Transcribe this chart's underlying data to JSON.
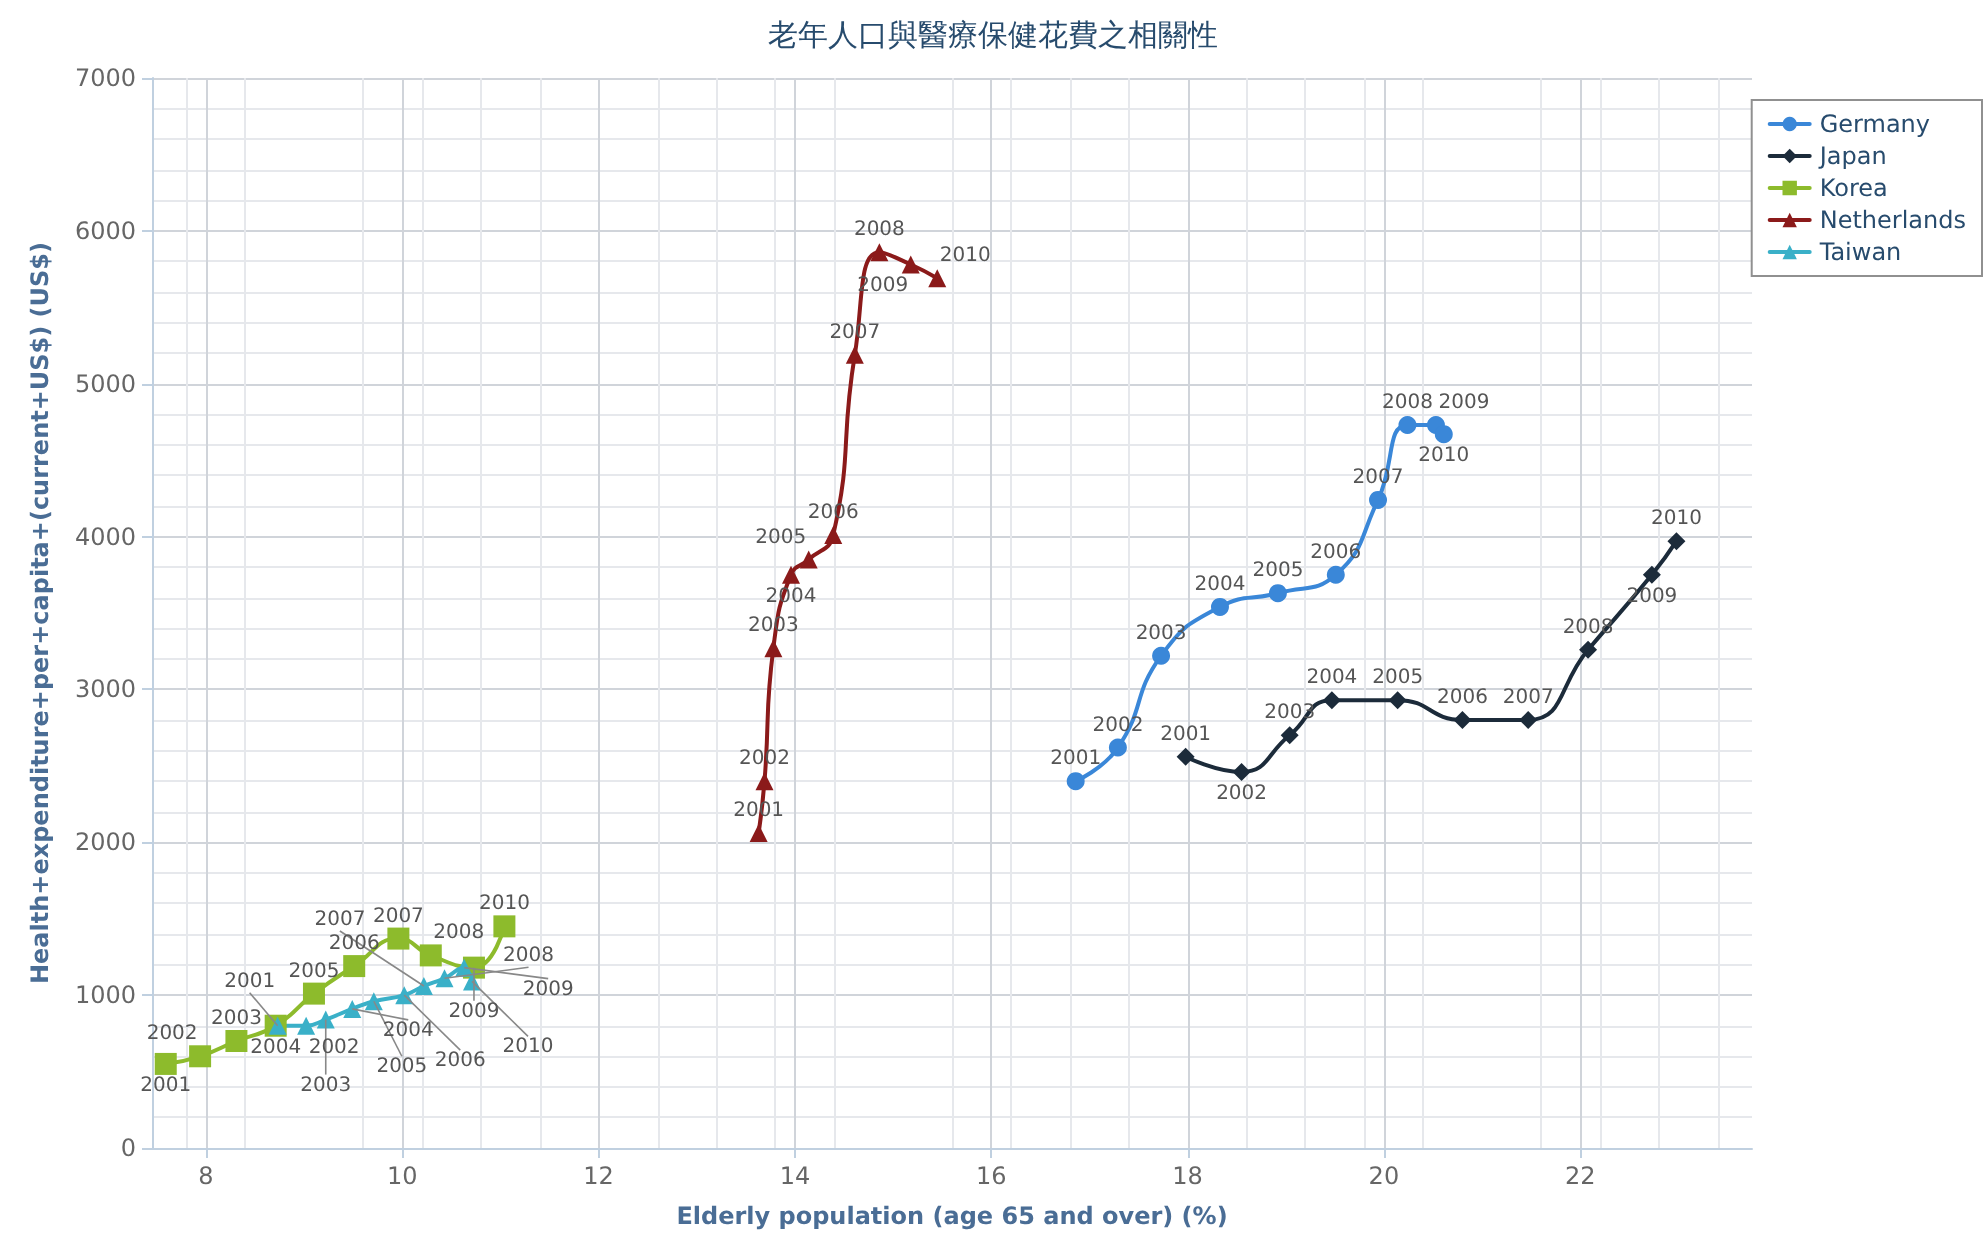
{
  "chart_data": {
    "type": "line",
    "title": "老年人口與醫療保健花費之相關性",
    "xlabel": "Elderly population (age 65 and over) (%)",
    "ylabel": "Health+expenditure+per+capita+(current+US$) (US$)",
    "xlim": [
      7.45,
      23.75
    ],
    "xticks": [
      8,
      10,
      12,
      14,
      16,
      18,
      20,
      22
    ],
    "ylim": [
      0,
      7000
    ],
    "yticks": [
      0,
      1000,
      2000,
      3000,
      4000,
      5000,
      6000,
      7000
    ],
    "grid": true,
    "legend": "top right",
    "line_style": "solid",
    "series": [
      {
        "name": "Germany",
        "color": "#3a87d8",
        "marker": "circle",
        "x": [
          16.86,
          17.29,
          17.73,
          18.33,
          18.92,
          19.51,
          19.94,
          20.24,
          20.53,
          20.61
        ],
        "values": [
          2400,
          2620,
          3220,
          3540,
          3630,
          3750,
          4240,
          4730,
          4730,
          4670
        ]
      },
      {
        "name": "Japan",
        "color": "#1c2b3a",
        "marker": "diamond",
        "x": [
          17.98,
          18.55,
          19.04,
          19.47,
          20.14,
          20.8,
          21.47,
          22.08,
          22.73,
          22.98
        ],
        "values": [
          2560,
          2460,
          2700,
          2930,
          2930,
          2800,
          2800,
          3260,
          3750,
          3970
        ]
      },
      {
        "name": "Korea",
        "color": "#8dbb2c",
        "marker": "square",
        "x": [
          7.59,
          7.94,
          8.31,
          8.71,
          9.1,
          9.51,
          9.96,
          10.29,
          10.73,
          11.04
        ],
        "values": [
          550,
          600,
          700,
          800,
          1010,
          1190,
          1370,
          1260,
          1180,
          1450
        ]
      },
      {
        "name": "Netherlands",
        "color": "#8b1a1a",
        "marker": "triangle",
        "x": [
          13.63,
          13.69,
          13.78,
          13.96,
          14.14,
          14.39,
          14.61,
          14.86,
          15.18,
          15.45
        ],
        "values": [
          2060,
          2400,
          3270,
          3750,
          3850,
          4010,
          5190,
          5860,
          5780,
          5690
        ]
      },
      {
        "name": "Taiwan",
        "color": "#3ab0c8",
        "marker": "triangle",
        "x": [
          8.73,
          9.02,
          9.22,
          9.49,
          9.71,
          10.02,
          10.22,
          10.43,
          10.63,
          10.71
        ],
        "values": [
          800,
          800,
          840,
          910,
          960,
          1000,
          1060,
          1110,
          1180,
          1090
        ]
      }
    ],
    "annotations": [
      {
        "text": "2001",
        "x": 16.86,
        "y": 2400
      },
      {
        "text": "2002",
        "x": 17.29,
        "y": 2620
      },
      {
        "text": "2003",
        "x": 17.73,
        "y": 3220
      },
      {
        "text": "2004",
        "x": 18.33,
        "y": 3540
      },
      {
        "text": "2005",
        "x": 18.92,
        "y": 3630
      },
      {
        "text": "2006",
        "x": 19.51,
        "y": 3750
      },
      {
        "text": "2007",
        "x": 19.94,
        "y": 4240
      },
      {
        "text": "2008",
        "x": 20.24,
        "y": 4730
      },
      {
        "text": "2009",
        "x": 20.53,
        "y": 4730
      },
      {
        "text": "2010",
        "x": 20.61,
        "y": 4670
      },
      {
        "text": "2001",
        "x": 17.98,
        "y": 2560
      },
      {
        "text": "2002",
        "x": 18.55,
        "y": 2460
      },
      {
        "text": "2003",
        "x": 19.04,
        "y": 2700
      },
      {
        "text": "2004",
        "x": 19.47,
        "y": 2930
      },
      {
        "text": "2005",
        "x": 20.14,
        "y": 2930
      },
      {
        "text": "2006",
        "x": 20.8,
        "y": 2800
      },
      {
        "text": "2007",
        "x": 21.47,
        "y": 2800
      },
      {
        "text": "2008",
        "x": 22.08,
        "y": 3260
      },
      {
        "text": "2009",
        "x": 22.73,
        "y": 3750
      },
      {
        "text": "2010",
        "x": 22.98,
        "y": 3970
      },
      {
        "text": "2001",
        "x": 7.59,
        "y": 550
      },
      {
        "text": "2002",
        "x": 7.94,
        "y": 600
      },
      {
        "text": "2003",
        "x": 8.31,
        "y": 700
      },
      {
        "text": "2004",
        "x": 8.71,
        "y": 800
      },
      {
        "text": "2005",
        "x": 9.1,
        "y": 1010
      },
      {
        "text": "2006",
        "x": 9.51,
        "y": 1190
      },
      {
        "text": "2007",
        "x": 9.96,
        "y": 1370
      },
      {
        "text": "2008",
        "x": 10.29,
        "y": 1260
      },
      {
        "text": "2009",
        "x": 10.73,
        "y": 1180
      },
      {
        "text": "2010",
        "x": 11.04,
        "y": 1450
      },
      {
        "text": "2001",
        "x": 13.63,
        "y": 2060
      },
      {
        "text": "2002",
        "x": 13.69,
        "y": 2400
      },
      {
        "text": "2003",
        "x": 13.78,
        "y": 3270
      },
      {
        "text": "2004",
        "x": 13.96,
        "y": 3750
      },
      {
        "text": "2005",
        "x": 14.14,
        "y": 3850
      },
      {
        "text": "2006",
        "x": 14.39,
        "y": 4010
      },
      {
        "text": "2007",
        "x": 14.61,
        "y": 5190
      },
      {
        "text": "2008",
        "x": 14.86,
        "y": 5860
      },
      {
        "text": "2009",
        "x": 15.18,
        "y": 5780
      },
      {
        "text": "2010",
        "x": 15.45,
        "y": 5690
      },
      {
        "text": "2001",
        "x": 8.73,
        "y": 800
      },
      {
        "text": "2002",
        "x": 9.02,
        "y": 800
      },
      {
        "text": "2003",
        "x": 9.22,
        "y": 840
      },
      {
        "text": "2004",
        "x": 9.49,
        "y": 910
      },
      {
        "text": "2005",
        "x": 9.71,
        "y": 960
      },
      {
        "text": "2006",
        "x": 10.02,
        "y": 1000
      },
      {
        "text": "2007",
        "x": 10.22,
        "y": 1060
      },
      {
        "text": "2008",
        "x": 10.43,
        "y": 1110
      },
      {
        "text": "2009",
        "x": 10.63,
        "y": 1180
      },
      {
        "text": "2010",
        "x": 10.71,
        "y": 1090
      }
    ]
  }
}
